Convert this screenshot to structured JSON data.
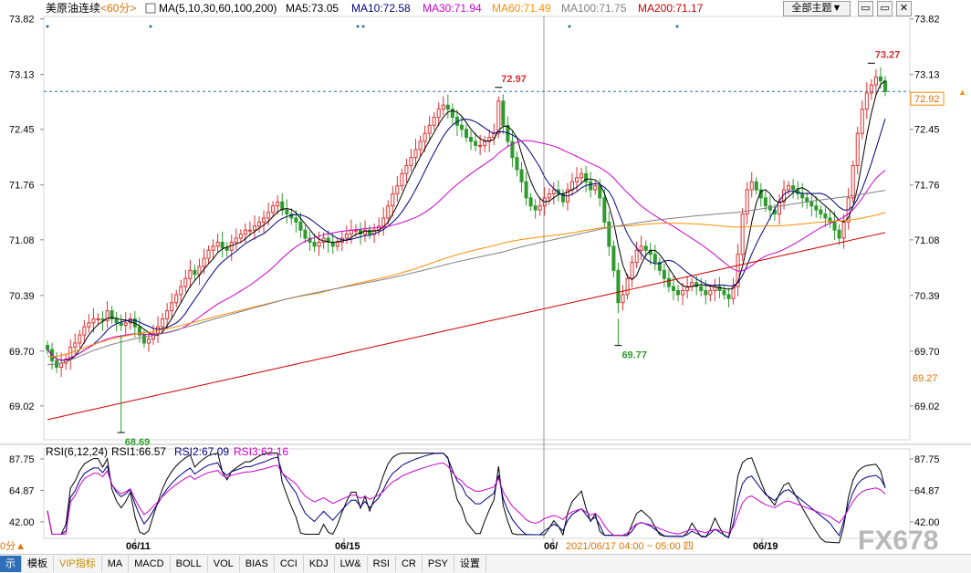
{
  "header": {
    "instrument": "美原油连续",
    "period": "<60分>",
    "ma_params": "MA(5,10,30,60,100,200)",
    "ma_items": [
      {
        "label": "MA5:73.05",
        "color": "#000000"
      },
      {
        "label": "MA10:72.58",
        "color": "#000080"
      },
      {
        "label": "MA30:71.94",
        "color": "#cc00cc"
      },
      {
        "label": "MA60:71.49",
        "color": "#ff8c00"
      },
      {
        "label": "MA100:71.75",
        "color": "#808080"
      },
      {
        "label": "MA200:71.17",
        "color": "#cc0000"
      }
    ],
    "theme_button": "全部主题▼"
  },
  "right_axis": {
    "ticks": [
      "73.82",
      "73.13",
      "72.45",
      "71.76",
      "71.08",
      "70.39",
      "69.70",
      "69.02"
    ],
    "last_price": "72.92",
    "bottom_price": "69.27"
  },
  "left_axis": {
    "ticks": [
      "73.82",
      "73.13",
      "72.45",
      "71.76",
      "71.08",
      "70.39",
      "69.70",
      "69.02"
    ]
  },
  "annotations": {
    "high_1": "72.97",
    "high_2": "73.27",
    "low_1": "69.77",
    "low_2": "68.69"
  },
  "rsi": {
    "params": "RSI(6,12,24)",
    "rsi1": "RSI1:66.57",
    "rsi2": "RSI2:67.09",
    "rsi3": "RSI3:62.16",
    "ticks_left": [
      "87.75",
      "64.87",
      "42.00"
    ],
    "ticks_right": [
      "87.75",
      "64.87",
      "42.00"
    ]
  },
  "x_axis": {
    "labels": [
      "06/11",
      "06/15",
      "06/",
      "06/19"
    ],
    "crosshair": "2021/06/17 04:00 ~ 05:00 四"
  },
  "toolbar": {
    "items": [
      "示",
      "模板",
      "VIP指标",
      "MA",
      "MACD",
      "BOLL",
      "VOL",
      "BIAS",
      "CCI",
      "KDJ",
      "LW&",
      "RSI",
      "CR",
      "PSY",
      "设置"
    ],
    "period_fragment": "0分▲"
  },
  "watermark": "FX678",
  "colors": {
    "up": "#e03030",
    "down": "#2e9b2e",
    "rsi1": "#000000",
    "rsi2": "#000080",
    "rsi3": "#cc00cc"
  },
  "chart_data": {
    "type": "candlestick",
    "title": "美原油连续 <60分>",
    "ylim": [
      68.6,
      73.85
    ],
    "yticks": [
      73.82,
      73.13,
      72.45,
      71.76,
      71.08,
      70.39,
      69.7,
      69.02
    ],
    "x_labels": [
      "06/11",
      "06/15",
      "06/",
      "06/19"
    ],
    "last_price": 72.92,
    "annotated_high": [
      72.97,
      73.27
    ],
    "annotated_low": [
      69.77,
      68.69
    ],
    "ma_values_latest": {
      "MA5": 73.05,
      "MA10": 72.58,
      "MA30": 71.94,
      "MA60": 71.49,
      "MA100": 71.75,
      "MA200": 71.17
    },
    "close_series": [
      69.72,
      69.58,
      69.5,
      69.55,
      69.6,
      69.75,
      69.8,
      69.9,
      70.0,
      70.05,
      70.1,
      70.1,
      70.08,
      70.2,
      70.1,
      70.05,
      70.02,
      70.05,
      70.1,
      70.0,
      69.9,
      69.8,
      69.85,
      69.92,
      70.0,
      70.1,
      70.2,
      70.3,
      70.4,
      70.5,
      70.6,
      70.7,
      70.65,
      70.75,
      70.85,
      70.95,
      71.0,
      71.05,
      70.98,
      70.95,
      71.05,
      71.1,
      71.15,
      71.2,
      71.2,
      71.25,
      71.3,
      71.35,
      71.42,
      71.5,
      71.55,
      71.45,
      71.4,
      71.35,
      71.3,
      71.2,
      71.1,
      71.05,
      71.0,
      71.05,
      71.1,
      71.05,
      71.0,
      71.05,
      71.1,
      71.15,
      71.2,
      71.2,
      71.15,
      71.2,
      71.15,
      71.2,
      71.25,
      71.35,
      71.5,
      71.65,
      71.75,
      71.9,
      72.0,
      72.1,
      72.2,
      72.3,
      72.4,
      72.5,
      72.6,
      72.7,
      72.75,
      72.7,
      72.6,
      72.5,
      72.45,
      72.35,
      72.3,
      72.25,
      72.25,
      72.3,
      72.35,
      72.4,
      72.8,
      72.5,
      72.3,
      72.1,
      71.95,
      71.8,
      71.6,
      71.5,
      71.45,
      71.5,
      71.6,
      71.65,
      71.7,
      71.65,
      71.55,
      71.7,
      71.8,
      71.85,
      71.9,
      71.8,
      71.7,
      71.75,
      71.6,
      71.3,
      71.0,
      70.7,
      70.3,
      70.4,
      70.6,
      70.8,
      70.95,
      71.0,
      70.95,
      70.9,
      70.8,
      70.7,
      70.6,
      70.5,
      70.45,
      70.4,
      70.45,
      70.5,
      70.55,
      70.5,
      70.45,
      70.4,
      70.45,
      70.5,
      70.45,
      70.4,
      70.35,
      70.5,
      70.9,
      71.4,
      71.7,
      71.8,
      71.7,
      71.6,
      71.5,
      71.45,
      71.4,
      71.55,
      71.7,
      71.75,
      71.7,
      71.65,
      71.6,
      71.55,
      71.5,
      71.45,
      71.4,
      71.35,
      71.3,
      71.2,
      71.1,
      71.3,
      71.6,
      72.0,
      72.4,
      72.7,
      72.9,
      73.0,
      73.1,
      73.05,
      72.92
    ],
    "rsi_latest": {
      "RSI1": 66.57,
      "RSI2": 67.09,
      "RSI3": 62.16
    },
    "rsi_ylim": [
      30,
      95
    ]
  }
}
